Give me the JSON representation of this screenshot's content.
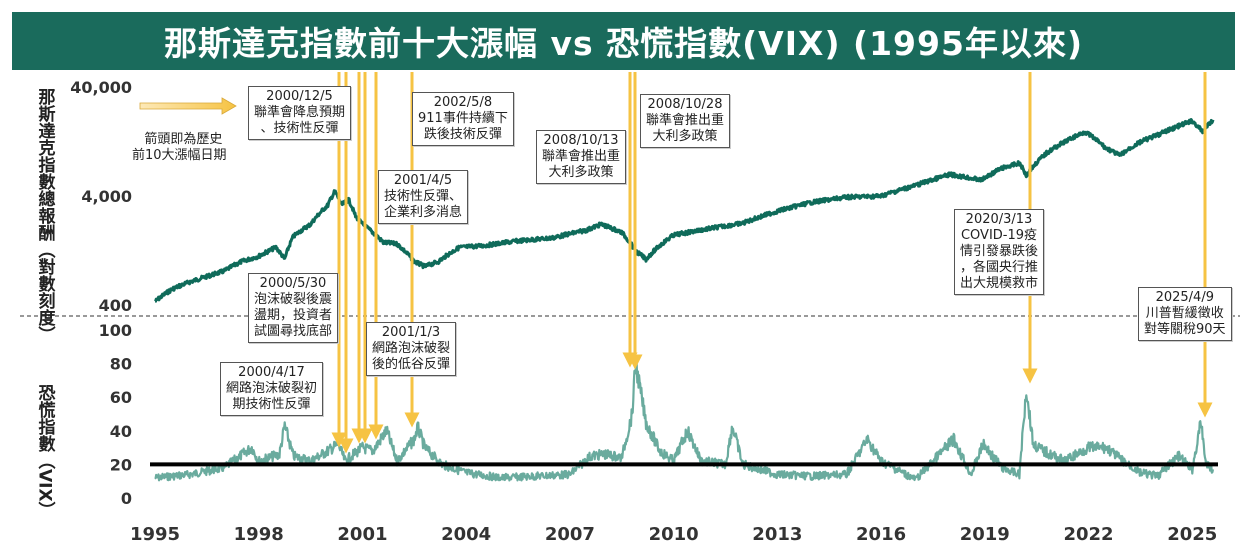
{
  "title": "那斯達克指數前十大漲幅 vs 恐慌指數(VIX) (1995年以來)",
  "top_axis_label": "那斯達克指數總報酬（對數刻度）",
  "bottom_axis_label": "恐慌指數（VIX）",
  "arrow_note": "箭頭即為歷史\n前10大漲幅日期",
  "colors": {
    "nasdaq": "#0f6b5a",
    "vix": "#6aab9e",
    "arrow": "#f6c343",
    "threshold": "#000000",
    "banner": "#1a6b5c"
  },
  "chart_data": [
    {
      "type": "line",
      "name": "那斯達克指數總報酬",
      "scale": "log",
      "yticks": [
        "40,000",
        "4,000",
        "400"
      ],
      "ylim": [
        400,
        40000
      ],
      "x": [
        1995.0,
        1995.5,
        1996.0,
        1996.5,
        1997.0,
        1997.5,
        1998.0,
        1998.5,
        1998.75,
        1999.0,
        1999.5,
        2000.0,
        2000.2,
        2000.4,
        2000.6,
        2000.8,
        2001.0,
        2001.3,
        2001.6,
        2002.0,
        2002.5,
        2002.8,
        2003.2,
        2003.8,
        2004.5,
        2005.5,
        2006.5,
        2007.5,
        2007.9,
        2008.5,
        2008.9,
        2009.2,
        2010.0,
        2011.0,
        2012.0,
        2013.0,
        2014.0,
        2015.0,
        2016.0,
        2017.0,
        2018.0,
        2018.9,
        2019.5,
        2020.0,
        2020.2,
        2020.8,
        2021.5,
        2021.9,
        2022.5,
        2022.9,
        2023.5,
        2024.0,
        2024.5,
        2025.0,
        2025.3,
        2025.6
      ],
      "values": [
        430,
        560,
        650,
        730,
        820,
        1000,
        1120,
        1350,
        1050,
        1700,
        2200,
        3300,
        4400,
        3300,
        3700,
        2600,
        2200,
        1850,
        1500,
        1450,
        1000,
        900,
        1000,
        1350,
        1400,
        1550,
        1650,
        1950,
        2200,
        1850,
        1250,
        1050,
        1750,
        2000,
        2250,
        2900,
        3500,
        3900,
        4000,
        5000,
        6300,
        5600,
        7200,
        8000,
        6200,
        10000,
        13500,
        15500,
        11000,
        9400,
        12500,
        14500,
        17000,
        19500,
        15500,
        20000
      ]
    },
    {
      "type": "line",
      "name": "恐慌指數(VIX)",
      "yticks": [
        "0",
        "20",
        "40",
        "60",
        "80",
        "100"
      ],
      "ylim": [
        0,
        100
      ],
      "threshold": 20,
      "x": [
        1995.0,
        1996.0,
        1997.0,
        1997.8,
        1998.0,
        1998.6,
        1998.75,
        1999.0,
        1999.5,
        2000.0,
        2000.3,
        2000.5,
        2001.0,
        2001.3,
        2001.7,
        2002.0,
        2002.5,
        2002.6,
        2002.8,
        2003.3,
        2004.0,
        2005.0,
        2006.0,
        2007.0,
        2007.6,
        2008.0,
        2008.5,
        2008.8,
        2008.9,
        2009.2,
        2009.6,
        2010.0,
        2010.4,
        2010.8,
        2011.5,
        2011.7,
        2012.0,
        2013.0,
        2014.0,
        2015.0,
        2015.6,
        2016.0,
        2017.0,
        2018.1,
        2018.6,
        2018.95,
        2019.5,
        2020.0,
        2020.2,
        2020.4,
        2020.7,
        2021.3,
        2022.0,
        2022.5,
        2023.0,
        2023.5,
        2024.0,
        2024.6,
        2025.0,
        2025.25,
        2025.4,
        2025.6
      ],
      "values": [
        12,
        14,
        18,
        30,
        22,
        26,
        43,
        25,
        22,
        28,
        32,
        22,
        30,
        28,
        40,
        22,
        35,
        42,
        30,
        20,
        15,
        12,
        13,
        14,
        25,
        26,
        24,
        50,
        80,
        45,
        28,
        22,
        40,
        22,
        20,
        43,
        20,
        14,
        13,
        14,
        35,
        22,
        11,
        35,
        14,
        32,
        18,
        14,
        65,
        32,
        28,
        22,
        30,
        30,
        22,
        15,
        13,
        25,
        17,
        45,
        20,
        17
      ]
    }
  ],
  "xticks": [
    "1995",
    "1998",
    "2001",
    "2004",
    "2007",
    "2010",
    "2013",
    "2016",
    "2019",
    "2022",
    "2025"
  ],
  "annotations": [
    {
      "text": "2000/12/5\n聯準會降息預期\n、技術性反彈"
    },
    {
      "text": "2002/5/8\n911事件持續下\n跌後技術反彈"
    },
    {
      "text": "2008/10/28\n聯準會推出重\n大利多政策"
    },
    {
      "text": "2008/10/13\n聯準會推出重\n大利多政策"
    },
    {
      "text": "2001/4/5\n技術性反彈、\n企業利多消息"
    },
    {
      "text": "2000/5/30\n泡沫破裂後震\n盪期，投資者\n試圖尋找底部"
    },
    {
      "text": "2001/1/3\n網路泡沫破裂\n後的低谷反彈"
    },
    {
      "text": "2000/4/17\n網路泡沫破裂初\n期技術性反彈"
    },
    {
      "text": "2020/3/13\nCOVID-19疫\n情引發暴跌後\n，各國央行推\n出大規模救市"
    },
    {
      "text": "2025/4/9\n川普暫緩徵收\n對等關稅90天"
    }
  ]
}
